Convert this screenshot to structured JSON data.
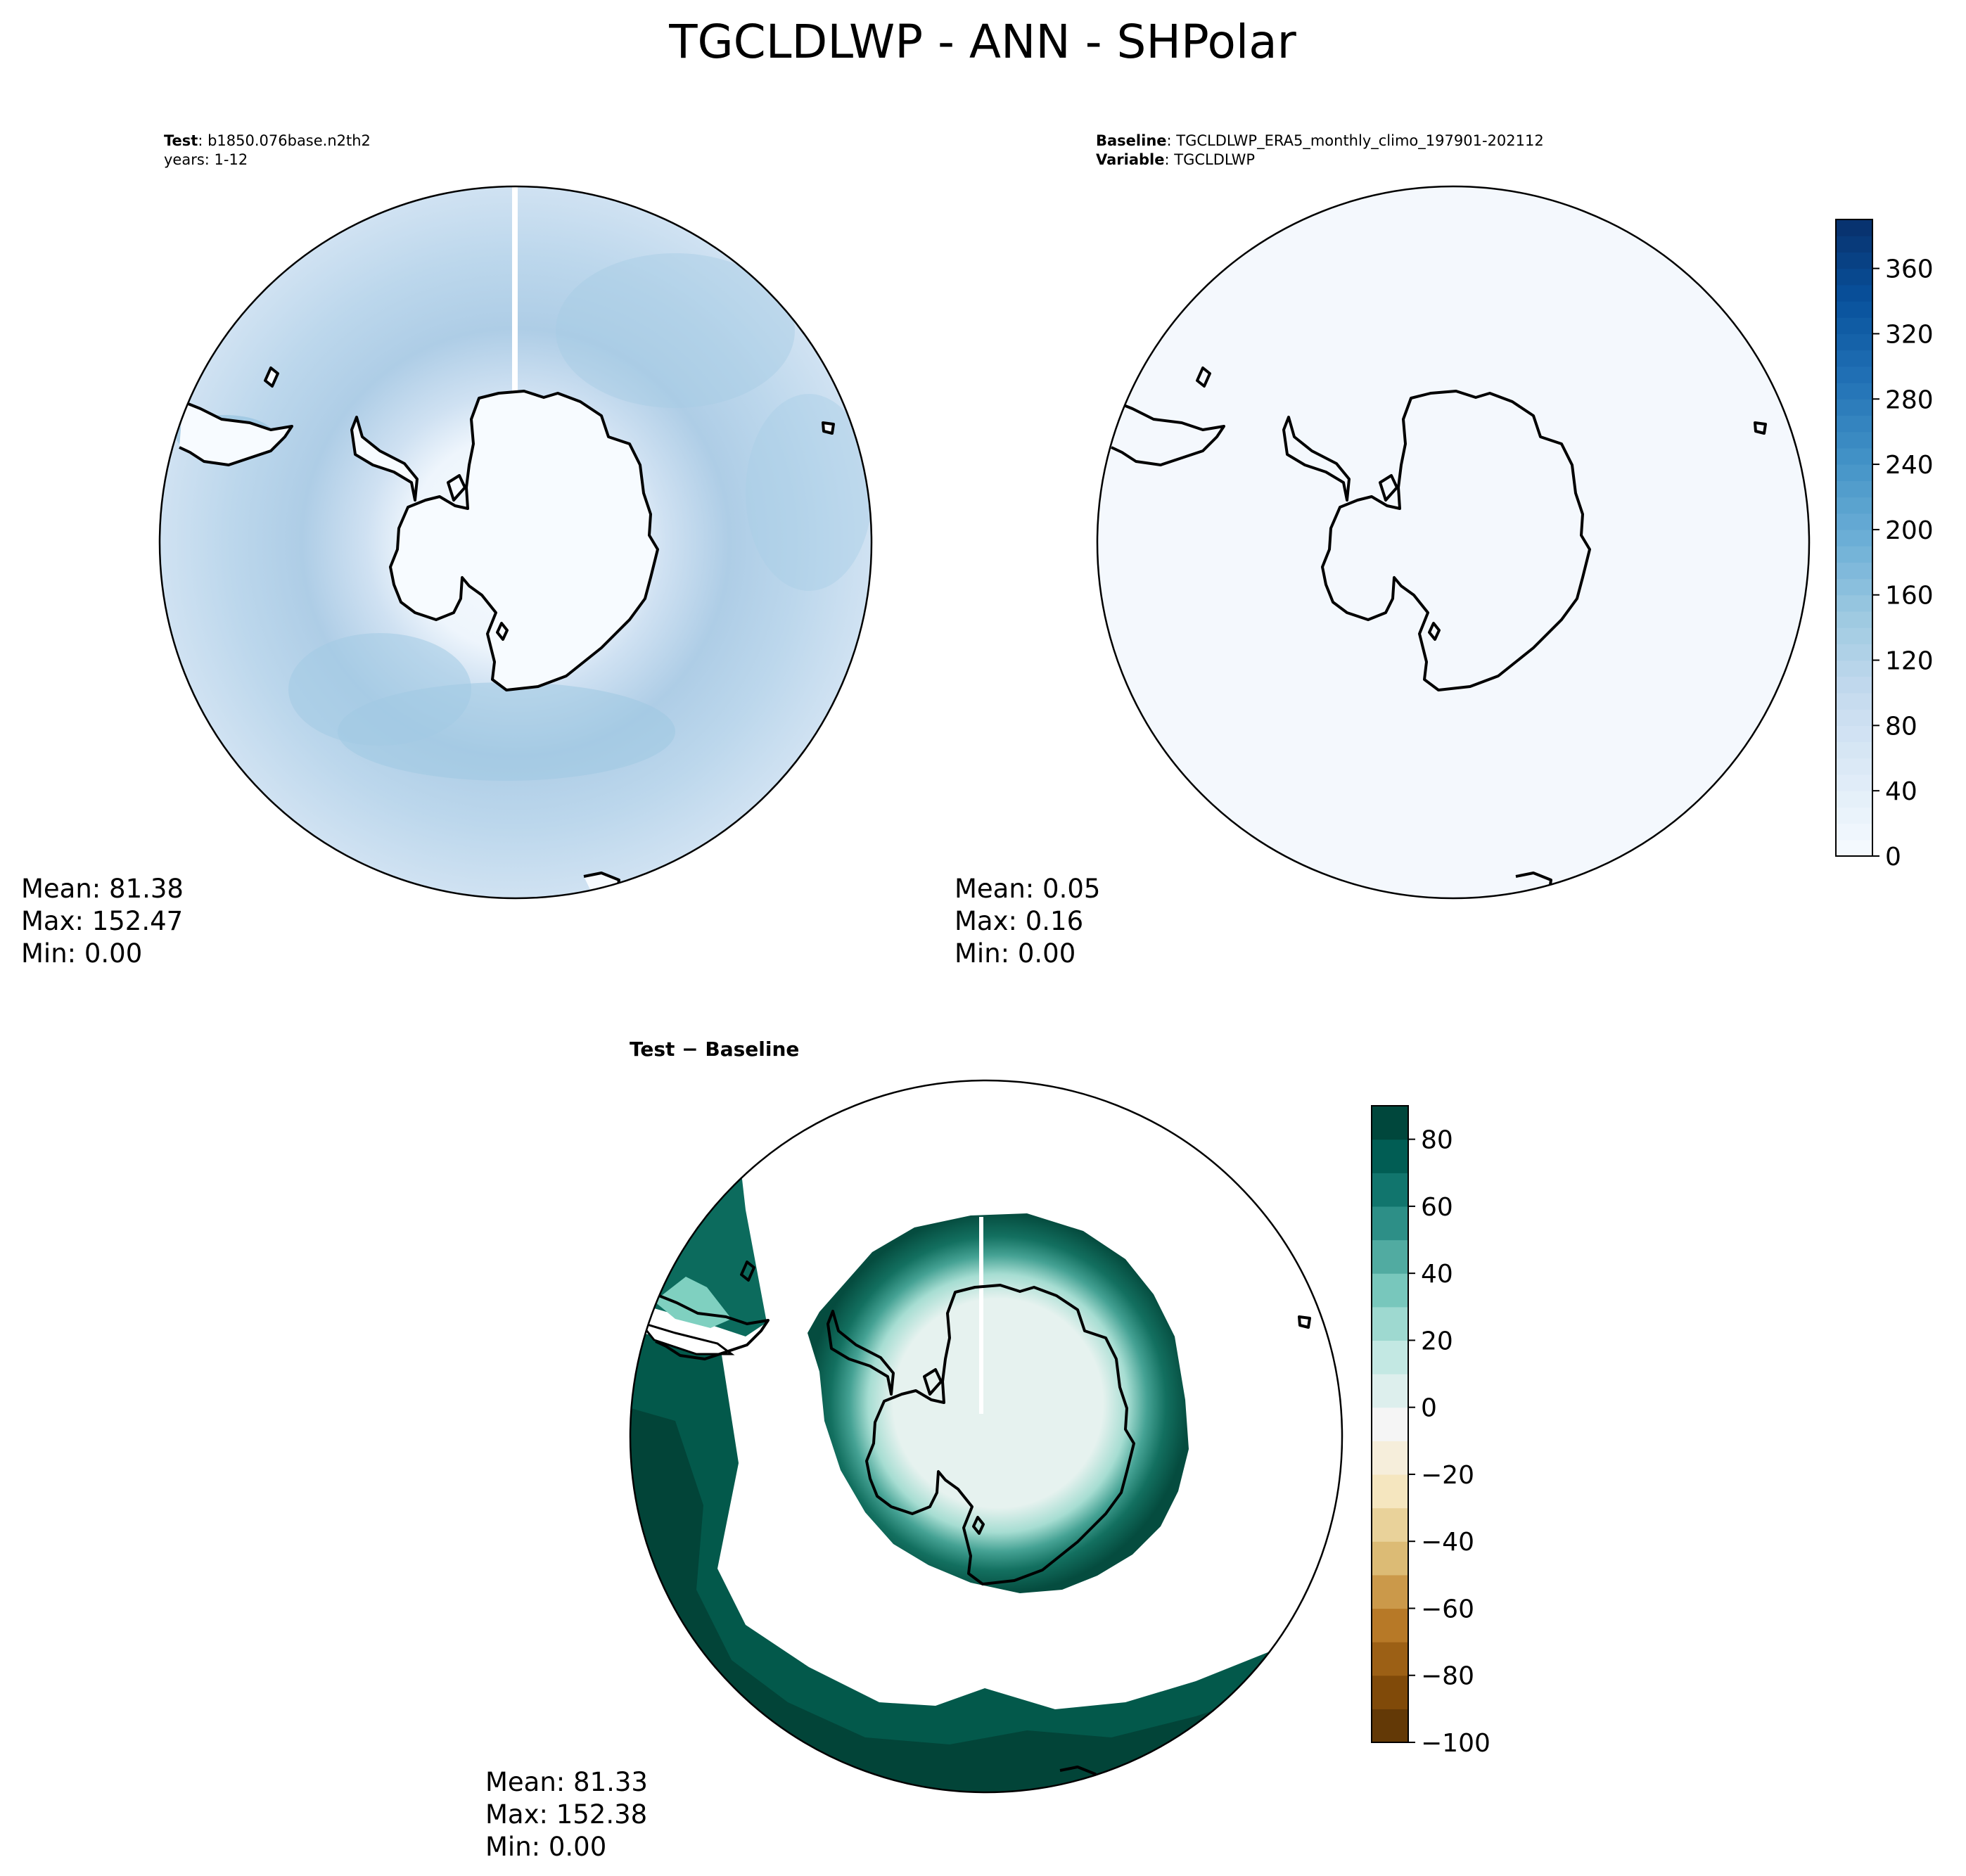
{
  "figure": {
    "title": "TGCLDLWP - ANN - SHPolar"
  },
  "colors": {
    "land_outline": "#000000",
    "blues_scale": [
      "#f7fbff",
      "#deebf7",
      "#c6dbef",
      "#9ecae1",
      "#6baed6",
      "#4292c6",
      "#2171b5",
      "#08519c",
      "#08306b"
    ],
    "brbg_scale": [
      "#543005",
      "#8c510a",
      "#bf812d",
      "#dfc27d",
      "#f6e8c3",
      "#f5f5f5",
      "#c7eae5",
      "#80cdc1",
      "#35978f",
      "#01665e",
      "#003c30"
    ]
  },
  "chart_data": [
    {
      "type": "heatmap",
      "projection": "south-polar-stereographic",
      "header": {
        "bold": "Test",
        "text": ": b1850.076base.n2th2",
        "line2": "years: 1-12"
      },
      "stats": {
        "mean": "Mean: 81.38",
        "max": "Max: 152.47",
        "min": "Min:  0.00"
      },
      "colormap": "Blues"
    },
    {
      "type": "heatmap",
      "projection": "south-polar-stereographic",
      "header": {
        "bold": "Baseline",
        "text": ": TGCLDLWP_ERA5_monthly_climo_197901-202112",
        "bold2": "Variable",
        "text2": ": TGCLDLWP"
      },
      "stats": {
        "mean": "Mean:  0.05",
        "max": "Max:  0.16",
        "min": "Min:  0.00"
      },
      "colormap": "Blues",
      "colorbar": {
        "min": 0,
        "max": 390,
        "ticks": [
          0,
          40,
          80,
          120,
          160,
          200,
          240,
          280,
          320,
          360
        ],
        "tick_labels": [
          "0",
          "40",
          "80",
          "120",
          "160",
          "200",
          "240",
          "280",
          "320",
          "360"
        ]
      }
    },
    {
      "type": "heatmap",
      "projection": "south-polar-stereographic",
      "header": {
        "bold": "Test − Baseline"
      },
      "stats": {
        "mean": "Mean: 81.33",
        "max": "Max: 152.38",
        "min": "Min:  0.00"
      },
      "colormap": "BrBG",
      "colorbar": {
        "min": -100,
        "max": 90,
        "ticks": [
          -100,
          -80,
          -60,
          -40,
          -20,
          0,
          20,
          40,
          60,
          80
        ],
        "tick_labels": [
          "−100",
          "−80",
          "−60",
          "−40",
          "−20",
          "0",
          "20",
          "40",
          "60",
          "80"
        ]
      }
    }
  ]
}
